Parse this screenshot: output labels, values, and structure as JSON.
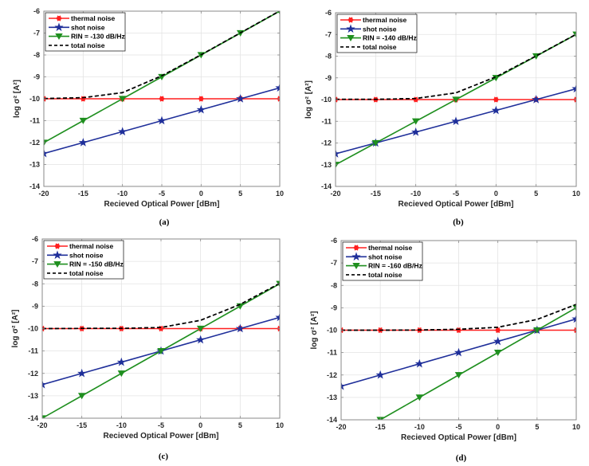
{
  "figure": {
    "colors": {
      "thermal": "#ff1f1f",
      "shot": "#1f2f9a",
      "rin": "#1f8f1f",
      "total": "#000000"
    }
  },
  "chart_data": [
    {
      "type": "line",
      "caption": "(a)",
      "xlabel": "Recieved Optical Power [dBm]",
      "ylabel": "log σ² [A²]",
      "xlim": [
        -20,
        10
      ],
      "ylim": [
        -14,
        -6
      ],
      "xticks": [
        -20,
        -15,
        -10,
        -5,
        0,
        5,
        10
      ],
      "yticks": [
        -14,
        -13,
        -12,
        -11,
        -10,
        -9,
        -8,
        -7,
        -6
      ],
      "grid": true,
      "legend_position": "top-left",
      "x": [
        -20,
        -15,
        -10,
        -5,
        0,
        5,
        10
      ],
      "series": [
        {
          "name": "thermal noise",
          "key": "thermal",
          "marker": "asterisk",
          "style": "solid",
          "values": [
            -10,
            -10,
            -10,
            -10,
            -10,
            -10,
            -10
          ]
        },
        {
          "name": "shot noise",
          "key": "shot",
          "marker": "star",
          "style": "solid",
          "values": [
            -12.5,
            -12,
            -11.5,
            -11,
            -10.5,
            -10,
            -9.5
          ]
        },
        {
          "name": "RIN = -130 dB/Hz",
          "key": "rin",
          "marker": "triangle-down",
          "style": "solid",
          "values": [
            -12,
            -11,
            -10,
            -9,
            -8,
            -7,
            -6
          ]
        },
        {
          "name": "total noise",
          "key": "total",
          "marker": "none",
          "style": "dashed",
          "values": [
            -9.99,
            -9.95,
            -9.72,
            -8.95,
            -7.99,
            -6.99,
            -5.99
          ]
        }
      ]
    },
    {
      "type": "line",
      "caption": "(b)",
      "xlabel": "Recieved Optical Power [dBm]",
      "ylabel": "log σ² [A²]",
      "xlim": [
        -20,
        10
      ],
      "ylim": [
        -14,
        -6
      ],
      "xticks": [
        -20,
        -15,
        -10,
        -5,
        0,
        5,
        10
      ],
      "yticks": [
        -14,
        -13,
        -12,
        -11,
        -10,
        -9,
        -8,
        -7,
        -6
      ],
      "grid": true,
      "legend_position": "top-left",
      "x": [
        -20,
        -15,
        -10,
        -5,
        0,
        5,
        10
      ],
      "series": [
        {
          "name": "thermal noise",
          "key": "thermal",
          "marker": "asterisk",
          "style": "solid",
          "values": [
            -10,
            -10,
            -10,
            -10,
            -10,
            -10,
            -10
          ]
        },
        {
          "name": "shot noise",
          "key": "shot",
          "marker": "star",
          "style": "solid",
          "values": [
            -12.5,
            -12,
            -11.5,
            -11,
            -10.5,
            -10,
            -9.5
          ]
        },
        {
          "name": "RIN = -140 dB/Hz",
          "key": "rin",
          "marker": "triangle-down",
          "style": "solid",
          "values": [
            -13,
            -12,
            -11,
            -10,
            -9,
            -8,
            -7
          ]
        },
        {
          "name": "total noise",
          "key": "total",
          "marker": "none",
          "style": "dashed",
          "values": [
            -9.99,
            -9.99,
            -9.95,
            -9.69,
            -8.95,
            -7.99,
            -6.99
          ]
        }
      ]
    },
    {
      "type": "line",
      "caption": "(c)",
      "xlabel": "Recieved Optical Power [dBm]",
      "ylabel": "log σ² [A²]",
      "xlim": [
        -20,
        10
      ],
      "ylim": [
        -14,
        -6
      ],
      "xticks": [
        -20,
        -15,
        -10,
        -5,
        0,
        5,
        10
      ],
      "yticks": [
        -14,
        -13,
        -12,
        -11,
        -10,
        -9,
        -8,
        -7,
        -6
      ],
      "grid": true,
      "legend_position": "top-left",
      "x": [
        -20,
        -15,
        -10,
        -5,
        0,
        5,
        10
      ],
      "series": [
        {
          "name": "thermal noise",
          "key": "thermal",
          "marker": "asterisk",
          "style": "solid",
          "values": [
            -10,
            -10,
            -10,
            -10,
            -10,
            -10,
            -10
          ]
        },
        {
          "name": "shot noise",
          "key": "shot",
          "marker": "star",
          "style": "solid",
          "values": [
            -12.5,
            -12,
            -11.5,
            -11,
            -10.5,
            -10,
            -9.5
          ]
        },
        {
          "name": "RIN = -150 dB/Hz",
          "key": "rin",
          "marker": "triangle-down",
          "style": "solid",
          "values": [
            -14,
            -13,
            -12,
            -11,
            -10,
            -9,
            -8
          ]
        },
        {
          "name": "total noise",
          "key": "total",
          "marker": "none",
          "style": "dashed",
          "values": [
            -10,
            -9.99,
            -9.99,
            -9.95,
            -9.63,
            -8.92,
            -7.98
          ]
        }
      ]
    },
    {
      "type": "line",
      "caption": "(d)",
      "xlabel": "Recieved Optical Power [dBm]",
      "ylabel": "log σ² [A²]",
      "xlim": [
        -20,
        10
      ],
      "ylim": [
        -14,
        -6
      ],
      "xticks": [
        -20,
        -15,
        -10,
        -5,
        0,
        5,
        10
      ],
      "yticks": [
        -14,
        -13,
        -12,
        -11,
        -10,
        -9,
        -8,
        -7,
        -6
      ],
      "grid": true,
      "legend_position": "top-left",
      "x": [
        -20,
        -15,
        -10,
        -5,
        0,
        5,
        10
      ],
      "series": [
        {
          "name": "thermal noise",
          "key": "thermal",
          "marker": "asterisk",
          "style": "solid",
          "values": [
            -10,
            -10,
            -10,
            -10,
            -10,
            -10,
            -10
          ]
        },
        {
          "name": "shot noise",
          "key": "shot",
          "marker": "star",
          "style": "solid",
          "values": [
            -12.5,
            -12,
            -11.5,
            -11,
            -10.5,
            -10,
            -9.5
          ]
        },
        {
          "name": "RIN = -160 dB/Hz",
          "key": "rin",
          "marker": "triangle-down",
          "style": "solid",
          "values": [
            -15,
            -14,
            -13,
            -12,
            -11,
            -10,
            -9
          ]
        },
        {
          "name": "total noise",
          "key": "total",
          "marker": "none",
          "style": "dashed",
          "values": [
            -10,
            -10,
            -9.99,
            -9.96,
            -9.87,
            -9.52,
            -8.85
          ]
        }
      ]
    }
  ]
}
